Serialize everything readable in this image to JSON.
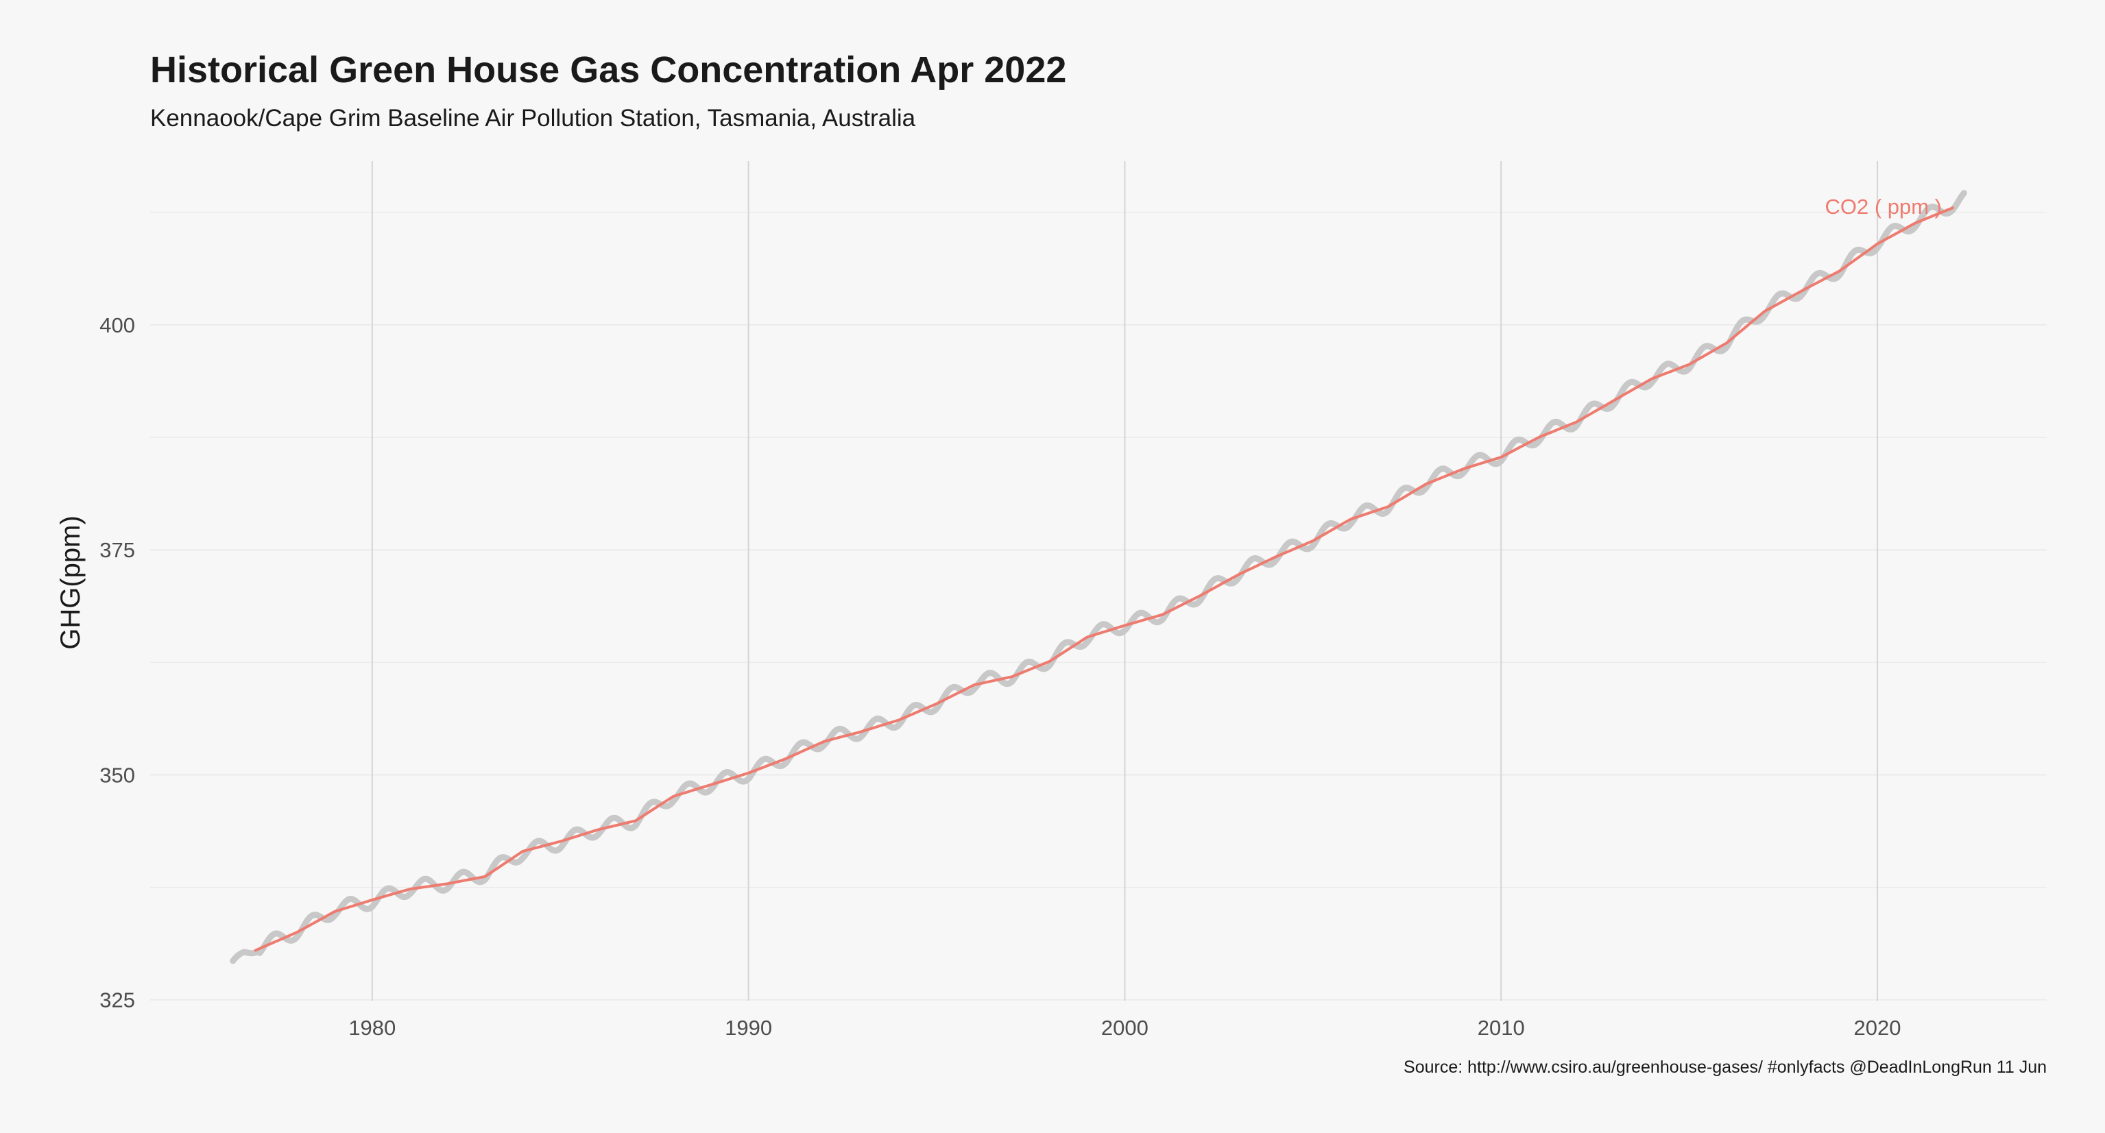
{
  "chart_data": {
    "type": "line",
    "title": "Historical Green House Gas Concentration Apr 2022",
    "subtitle": "Kennaook/Cape Grim Baseline Air Pollution Station, Tasmania, Australia",
    "xlabel": "",
    "ylabel": "GHG(ppm)",
    "caption": "Source: http://www.csiro.au/greenhouse-gases/ #onlyfacts @DeadInLongRun 11 Jun",
    "xlim": [
      1974.1,
      2024.5
    ],
    "ylim": [
      324.9,
      418.2
    ],
    "x_ticks": [
      1980,
      1990,
      2000,
      2010,
      2020
    ],
    "y_ticks": [
      325,
      350,
      375,
      400
    ],
    "grid": true,
    "colors": {
      "raw": "#c8c8c8",
      "smooth": "#ee7b6f",
      "grid_major": "#d5d5d5",
      "grid_minor": "#ebebeb"
    },
    "series": [
      {
        "name": "CO2 ( ppm )",
        "kind": "smooth",
        "x": [
          1976.9,
          1978,
          1979,
          1980,
          1981,
          1982,
          1983,
          1984,
          1985,
          1986,
          1987,
          1988,
          1989,
          1990,
          1991,
          1992,
          1993,
          1994,
          1995,
          1996,
          1997,
          1998,
          1999,
          2000,
          2001,
          2002,
          2003,
          2004,
          2005,
          2006,
          2007,
          2008,
          2009,
          2010,
          2011,
          2012,
          2013,
          2014,
          2015,
          2016,
          2017,
          2018,
          2019,
          2020,
          2021,
          2022
        ],
        "y": [
          330.5,
          332.5,
          334.8,
          336.1,
          337.3,
          337.9,
          338.7,
          341.5,
          342.6,
          343.9,
          344.9,
          347.6,
          348.9,
          350.2,
          351.8,
          353.7,
          354.8,
          356.1,
          357.9,
          360.0,
          360.9,
          362.6,
          365.3,
          366.6,
          367.8,
          369.9,
          372.2,
          374.2,
          376.0,
          378.4,
          379.8,
          382.3,
          384.0,
          385.3,
          387.5,
          389.2,
          391.6,
          394.0,
          395.6,
          398.0,
          401.5,
          403.8,
          406.0,
          409.0,
          411.3,
          413.0
        ]
      },
      {
        "name": "",
        "kind": "raw",
        "amplitude": 0.8,
        "x": [
          1976.3,
          1976.6,
          1977,
          1978,
          1979,
          1980,
          1981,
          1982,
          1983,
          1984,
          1985,
          1986,
          1987,
          1988,
          1989,
          1990,
          1991,
          1992,
          1993,
          1994,
          1995,
          1996,
          1997,
          1998,
          1999,
          2000,
          2001,
          2002,
          2003,
          2004,
          2005,
          2006,
          2007,
          2008,
          2009,
          2010,
          2011,
          2012,
          2013,
          2014,
          2015,
          2016,
          2017,
          2018,
          2019,
          2020,
          2021,
          2022.3
        ],
        "y": [
          329.0,
          330.2,
          330.8,
          332.6,
          335.0,
          336.0,
          337.4,
          338.0,
          339.0,
          341.4,
          342.5,
          344.0,
          345.0,
          347.7,
          349.0,
          350.2,
          352.0,
          353.9,
          354.9,
          356.2,
          358.0,
          360.2,
          361.0,
          362.8,
          365.4,
          366.7,
          367.9,
          370.0,
          372.4,
          374.4,
          376.1,
          378.5,
          380.0,
          382.5,
          384.2,
          385.5,
          387.7,
          389.4,
          391.8,
          394.2,
          395.8,
          398.2,
          401.7,
          404.0,
          406.2,
          409.2,
          411.5,
          414.0
        ]
      }
    ]
  }
}
